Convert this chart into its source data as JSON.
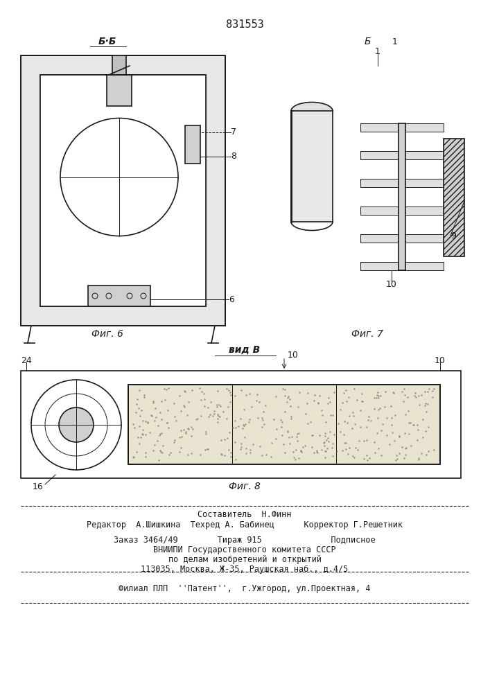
{
  "patent_number": "831553",
  "bg_color": "#ffffff",
  "fig_color": "#f5f5f0",
  "line_color": "#1a1a1a",
  "hatch_color": "#333333",
  "label_b_b": "Б·Б",
  "label_fig6": "Фиг. 6",
  "label_fig7": "Фиг. 7",
  "label_vid_b": "вид В",
  "label_fig8": "Фиг. 8",
  "footer_line1": "Составитель  Н.Финн",
  "footer_line2": "Редактор  А.Шишкина  Техред А. Бабинец      Корректор Г.Решетник",
  "footer_line3": "Заказ 3464/49        Тираж 915              Подписное",
  "footer_line4": "ВНИИПИ Государственного комитета СССР",
  "footer_line5": "по делам изобретений и открытий",
  "footer_line6": "113035, Москва, Ж-35, Раушская наб., д.4/5",
  "footer_line7": "Филиал ПЛП  ''Патент'',  г.Ужгород, ул.Проектная, 4",
  "num6": "6",
  "num7": "7",
  "num8": "8",
  "num9": "9",
  "num10": "10",
  "num16": "16",
  "num24": "24",
  "num1": "1"
}
